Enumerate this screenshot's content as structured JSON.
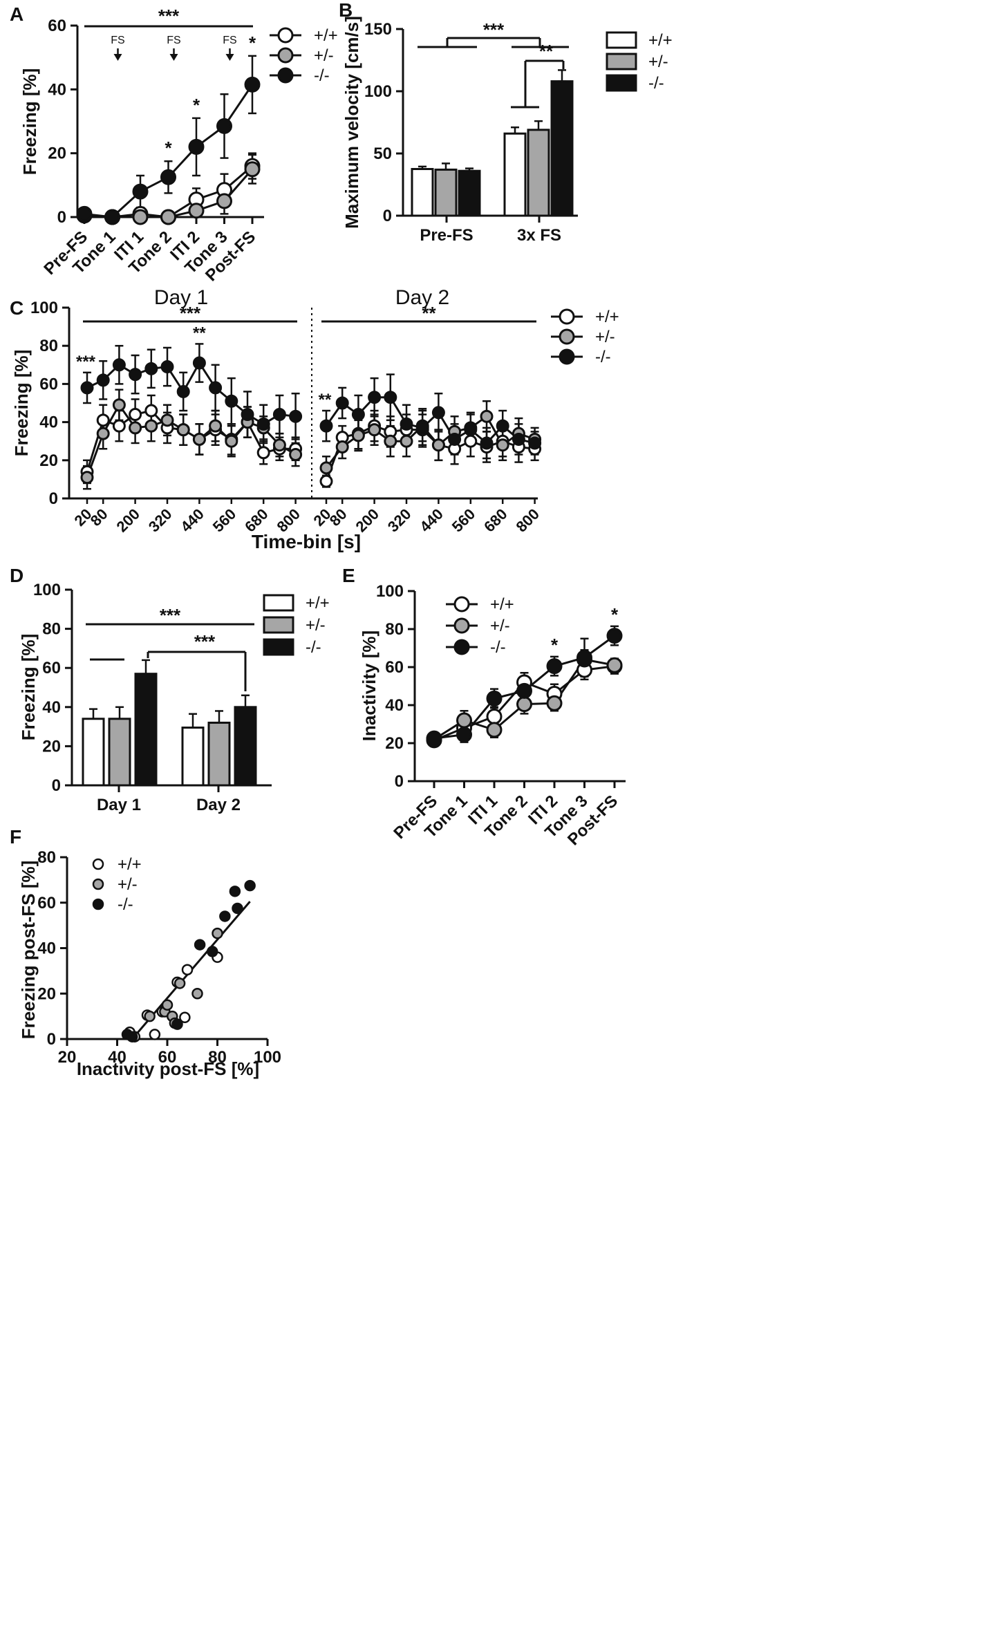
{
  "figure": {
    "colors": {
      "wt": "#ffffff",
      "het": "#a6a6a6",
      "ko": "#111111",
      "axis": "#111111"
    }
  },
  "chart_data": [
    {
      "id": "A",
      "panel_label": "A",
      "type": "line",
      "ylabel": "Freezing [%]",
      "ylim": [
        0,
        60
      ],
      "yticks": [
        "0",
        "20",
        "40",
        "60"
      ],
      "categories": [
        "Pre-FS",
        "Tone 1",
        "ITI 1",
        "Tone 2",
        "ITI 2",
        "Tone 3",
        "Post-FS"
      ],
      "series": [
        {
          "name": "+/+",
          "values": [
            0.5,
            0,
            1,
            0,
            5.5,
            8.5,
            16
          ],
          "err": [
            0.5,
            0,
            1,
            0,
            3.5,
            5,
            4
          ]
        },
        {
          "name": "+/-",
          "values": [
            0.5,
            0,
            0,
            0,
            2,
            5,
            15
          ],
          "err": [
            0.5,
            0,
            0.5,
            0,
            2,
            4,
            4.5
          ]
        },
        {
          "name": "-/-",
          "values": [
            1,
            0,
            8,
            12.5,
            22,
            28.5,
            41.5
          ],
          "err": [
            0.5,
            0,
            5,
            5,
            9,
            10,
            9
          ]
        }
      ],
      "legend": [
        "+/+",
        "+/-",
        "-/-"
      ],
      "annotations": {
        "fs_label": "FS",
        "fs_positions": [
          "Tone 1",
          "Tone 2",
          "Tone 3"
        ],
        "overall": "***",
        "stars": [
          {
            "at": "Tone 2",
            "text": "*"
          },
          {
            "at": "ITI 2",
            "text": "*"
          },
          {
            "at": "Post-FS",
            "text": "*"
          }
        ]
      }
    },
    {
      "id": "B",
      "panel_label": "B",
      "type": "bar",
      "ylabel": "Maximum velocity [cm/s]",
      "ylim": [
        0,
        150
      ],
      "yticks": [
        "0",
        "50",
        "100",
        "150"
      ],
      "categories": [
        "Pre-FS",
        "3x FS"
      ],
      "series": [
        {
          "name": "+/+",
          "values": [
            37.5,
            66
          ],
          "err": [
            2,
            5
          ]
        },
        {
          "name": "+/-",
          "values": [
            37,
            69
          ],
          "err": [
            5,
            7
          ]
        },
        {
          "name": "-/-",
          "values": [
            36,
            108
          ],
          "err": [
            2,
            9
          ]
        }
      ],
      "legend": [
        "+/+",
        "+/-",
        "-/-"
      ],
      "annotations": {
        "outer": "***",
        "inner": "**"
      }
    },
    {
      "id": "C",
      "panel_label": "C",
      "type": "line",
      "ylabel": "Freezing [%]",
      "xlabel": "Time-bin [s]",
      "ylim": [
        0,
        100
      ],
      "yticks": [
        "0",
        "20",
        "40",
        "60",
        "80",
        "100"
      ],
      "day_titles": [
        "Day 1",
        "Day 2"
      ],
      "xticks": [
        "20",
        "80",
        "200",
        "320",
        "440",
        "560",
        "680",
        "800"
      ],
      "days": [
        {
          "series": [
            {
              "name": "+/+",
              "values": [
                14,
                41,
                38,
                44,
                46,
                37,
                36,
                31,
                36,
                31,
                40,
                24,
                26,
                26
              ],
              "err": [
                6,
                8,
                8,
                8,
                8,
                8,
                8,
                8,
                8,
                8,
                8,
                6,
                6,
                6
              ]
            },
            {
              "name": "+/-",
              "values": [
                11,
                34,
                49,
                37,
                38,
                41,
                36,
                31,
                38,
                30,
                40,
                37,
                28,
                23
              ],
              "err": [
                6,
                8,
                8,
                8,
                8,
                8,
                8,
                8,
                8,
                8,
                8,
                6,
                6,
                6
              ]
            },
            {
              "name": "-/-",
              "values": [
                58,
                62,
                70,
                65,
                68,
                69,
                56,
                71,
                58,
                51,
                44,
                39,
                44,
                43
              ],
              "err": [
                8,
                10,
                10,
                10,
                10,
                10,
                10,
                10,
                12,
                12,
                12,
                10,
                10,
                12
              ]
            }
          ],
          "overall": "***",
          "stars": [
            {
              "at": 0,
              "text": "***"
            },
            {
              "at": 7,
              "text": "**"
            }
          ]
        },
        {
          "series": [
            {
              "name": "+/+",
              "values": [
                9,
                32,
                34,
                38,
                35,
                36,
                36,
                28,
                26,
                30,
                27,
                30,
                27,
                26
              ],
              "err": [
                3,
                6,
                8,
                8,
                8,
                8,
                8,
                8,
                8,
                8,
                8,
                8,
                8,
                6
              ]
            },
            {
              "name": "+/-",
              "values": [
                16,
                27,
                33,
                36,
                30,
                30,
                38,
                28,
                35,
                37,
                43,
                28,
                34,
                31
              ],
              "err": [
                6,
                6,
                8,
                8,
                8,
                8,
                8,
                8,
                8,
                8,
                8,
                8,
                8,
                6
              ]
            },
            {
              "name": "-/-",
              "values": [
                38,
                50,
                44,
                53,
                53,
                39,
                37,
                45,
                31,
                36,
                29,
                38,
                31,
                29
              ],
              "err": [
                8,
                8,
                10,
                10,
                12,
                10,
                10,
                10,
                8,
                8,
                8,
                8,
                8,
                6
              ]
            }
          ],
          "overall": "**",
          "stars": [
            {
              "at": 0,
              "text": "**"
            }
          ]
        }
      ],
      "legend": [
        "+/+",
        "+/-",
        "-/-"
      ]
    },
    {
      "id": "D",
      "panel_label": "D",
      "type": "bar",
      "ylabel": "Freezing [%]",
      "ylim": [
        0,
        100
      ],
      "yticks": [
        "0",
        "20",
        "40",
        "60",
        "80",
        "100"
      ],
      "categories": [
        "Day 1",
        "Day 2"
      ],
      "series": [
        {
          "name": "+/+",
          "values": [
            34,
            29.5
          ],
          "err": [
            5,
            7
          ]
        },
        {
          "name": "+/-",
          "values": [
            34,
            32
          ],
          "err": [
            6,
            6
          ]
        },
        {
          "name": "-/-",
          "values": [
            57,
            40
          ],
          "err": [
            7,
            6
          ]
        }
      ],
      "legend": [
        "+/+",
        "+/-",
        "-/-"
      ],
      "annotations": {
        "overall": "***",
        "ko_days": "***"
      }
    },
    {
      "id": "E",
      "panel_label": "E",
      "type": "line",
      "ylabel": "Inactivity [%]",
      "ylim": [
        0,
        100
      ],
      "yticks": [
        "0",
        "20",
        "40",
        "60",
        "80",
        "100"
      ],
      "categories": [
        "Pre-FS",
        "Tone 1",
        "ITI 1",
        "Tone 2",
        "ITI 2",
        "Tone 3",
        "Post-FS"
      ],
      "series": [
        {
          "name": "+/+",
          "values": [
            21.5,
            28,
            34,
            52,
            46,
            58.5,
            60.5
          ],
          "err": [
            2,
            4,
            5,
            5,
            5,
            5,
            4
          ]
        },
        {
          "name": "+/-",
          "values": [
            22,
            32,
            27,
            40.5,
            41,
            64,
            61
          ],
          "err": [
            2,
            5,
            4,
            5,
            4,
            5,
            3
          ]
        },
        {
          "name": "-/-",
          "values": [
            22.5,
            24.5,
            43.5,
            47.5,
            60.5,
            65,
            76.5
          ],
          "err": [
            2,
            4,
            5,
            5,
            5,
            10,
            5
          ]
        }
      ],
      "legend": [
        "+/+",
        "+/-",
        "-/-"
      ],
      "annotations": {
        "stars": [
          {
            "at": "ITI 2",
            "text": "*"
          },
          {
            "at": "Post-FS",
            "text": "*"
          }
        ]
      }
    },
    {
      "id": "F",
      "panel_label": "F",
      "type": "scatter",
      "xlabel": "Inactivity post-FS [%]",
      "ylabel": "Freezing post-FS [%]",
      "xlim": [
        20,
        100
      ],
      "ylim": [
        0,
        80
      ],
      "xticks": [
        "20",
        "40",
        "60",
        "80",
        "100"
      ],
      "yticks": [
        "0",
        "20",
        "40",
        "60",
        "80"
      ],
      "series": [
        {
          "name": "+/+",
          "x": [
            45,
            47,
            52,
            55,
            58,
            64,
            67,
            68,
            80
          ],
          "y": [
            3,
            1,
            10.5,
            2,
            12,
            25,
            9.5,
            30.5,
            36
          ]
        },
        {
          "name": "+/-",
          "x": [
            53,
            59,
            60,
            62,
            63,
            72,
            80,
            65
          ],
          "y": [
            10,
            12,
            15,
            10,
            7,
            20,
            46.5,
            24.5
          ]
        },
        {
          "name": "-/-",
          "x": [
            44,
            46,
            64,
            73,
            78,
            83,
            87,
            88,
            93
          ],
          "y": [
            2,
            1,
            6.5,
            41.5,
            38.5,
            54,
            65,
            57.5,
            67.5
          ]
        }
      ],
      "regression": {
        "x": [
          46,
          93
        ],
        "y": [
          0,
          60.5
        ]
      },
      "legend": [
        "+/+",
        "+/-",
        "-/-"
      ]
    }
  ]
}
